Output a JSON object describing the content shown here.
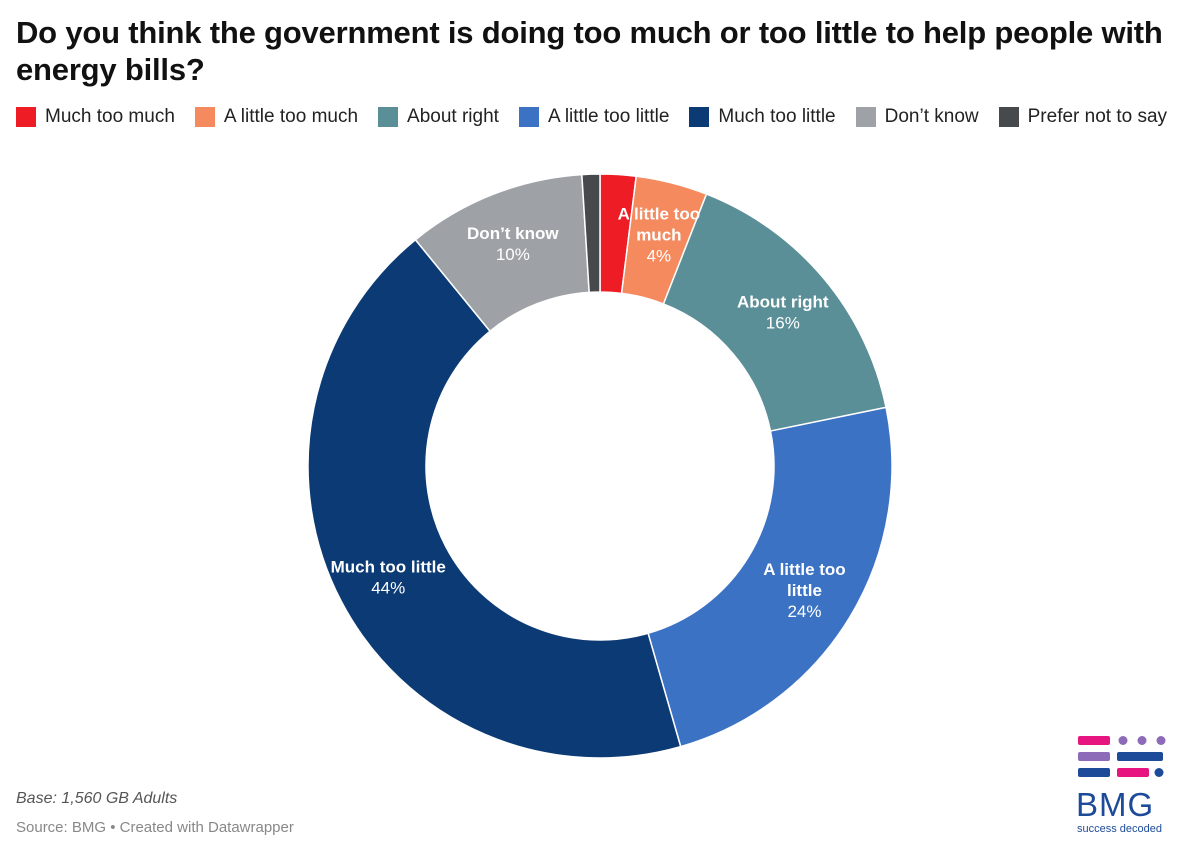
{
  "title": "Do you think the government is doing too much or too little to help people with energy bills?",
  "legend": [
    {
      "label": "Much too much",
      "color": "#ee1c25"
    },
    {
      "label": "A little too much",
      "color": "#f58a5f"
    },
    {
      "label": "About right",
      "color": "#5b8f98"
    },
    {
      "label": "A little too little",
      "color": "#3b72c4"
    },
    {
      "label": "Much too little",
      "color": "#0b3a75"
    },
    {
      "label": "Don’t know",
      "color": "#9ea2a6"
    },
    {
      "label": "Prefer not to say",
      "color": "#474a4d"
    }
  ],
  "chart_data": {
    "type": "pie",
    "variant": "donut",
    "title": "Do you think the government is doing too much or too little to help people with energy bills?",
    "categories": [
      "Much too much",
      "A little too much",
      "About right",
      "A little too little",
      "Much too little",
      "Don’t know",
      "Prefer not to say"
    ],
    "values": [
      2,
      4,
      16,
      24,
      44,
      10,
      1
    ],
    "slices": [
      {
        "name": "Much too much",
        "value": 2,
        "color": "#ee1c25",
        "label_lines": [],
        "pct_label": ""
      },
      {
        "name": "A little too much",
        "value": 4,
        "color": "#f58a5f",
        "label_lines": [
          "A little too",
          "much"
        ],
        "pct_label": "4%"
      },
      {
        "name": "About right",
        "value": 16,
        "color": "#5b8f98",
        "label_lines": [
          "About right"
        ],
        "pct_label": "16%"
      },
      {
        "name": "A little too little",
        "value": 24,
        "color": "#3b72c4",
        "label_lines": [
          "A little too",
          "little"
        ],
        "pct_label": "24%"
      },
      {
        "name": "Much too little",
        "value": 44,
        "color": "#0b3a75",
        "label_lines": [
          "Much too little"
        ],
        "pct_label": "44%"
      },
      {
        "name": "Don’t know",
        "value": 10,
        "color": "#9ea2a6",
        "label_lines": [
          "Don’t know"
        ],
        "pct_label": "10%"
      },
      {
        "name": "Prefer not to say",
        "value": 1,
        "color": "#474a4d",
        "label_lines": [],
        "pct_label": ""
      }
    ]
  },
  "footer": {
    "base": "Base: 1,560 GB Adults",
    "source": "Source: BMG • Created with Datawrapper"
  },
  "logo": {
    "name": "BMG",
    "tagline": "success decoded",
    "colors": {
      "pink": "#e6157f",
      "purple": "#8e6bb8",
      "blue": "#1d4b9a"
    }
  }
}
